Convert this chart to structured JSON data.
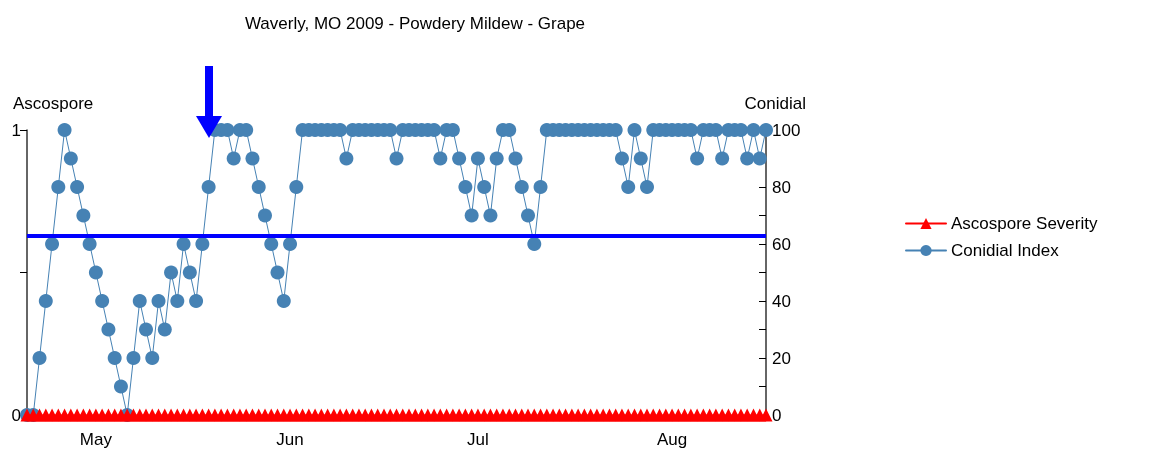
{
  "chart_data": {
    "type": "line",
    "title": "Waverly, MO 2009 - Powdery Mildew - Grape",
    "ylabel": "Ascospore",
    "y2label": "Conidial",
    "x": [
      "2009-04-20",
      "2009-04-21",
      "2009-04-22",
      "2009-04-23",
      "2009-04-24",
      "2009-04-25",
      "2009-04-26",
      "2009-04-27",
      "2009-04-28",
      "2009-04-29",
      "2009-04-30",
      "2009-05-01",
      "2009-05-02",
      "2009-05-03",
      "2009-05-04",
      "2009-05-05",
      "2009-05-06",
      "2009-05-07",
      "2009-05-08",
      "2009-05-09",
      "2009-05-10",
      "2009-05-11",
      "2009-05-12",
      "2009-05-13",
      "2009-05-14",
      "2009-05-15",
      "2009-05-16",
      "2009-05-17",
      "2009-05-18",
      "2009-05-19",
      "2009-05-20",
      "2009-05-21",
      "2009-05-22",
      "2009-05-23",
      "2009-05-24",
      "2009-05-25",
      "2009-05-26",
      "2009-05-27",
      "2009-05-28",
      "2009-05-29",
      "2009-05-30",
      "2009-05-31",
      "2009-06-01",
      "2009-06-02",
      "2009-06-03",
      "2009-06-04",
      "2009-06-05",
      "2009-06-06",
      "2009-06-07",
      "2009-06-08",
      "2009-06-09",
      "2009-06-10",
      "2009-06-11",
      "2009-06-12",
      "2009-06-13",
      "2009-06-14",
      "2009-06-15",
      "2009-06-16",
      "2009-06-17",
      "2009-06-18",
      "2009-06-19",
      "2009-06-20",
      "2009-06-21",
      "2009-06-22",
      "2009-06-23",
      "2009-06-24",
      "2009-06-25",
      "2009-06-26",
      "2009-06-27",
      "2009-06-28",
      "2009-06-29",
      "2009-06-30",
      "2009-07-01",
      "2009-07-02",
      "2009-07-03",
      "2009-07-04",
      "2009-07-05",
      "2009-07-06",
      "2009-07-07",
      "2009-07-08",
      "2009-07-09",
      "2009-07-10",
      "2009-07-11",
      "2009-07-12",
      "2009-07-13",
      "2009-07-14",
      "2009-07-15",
      "2009-07-16",
      "2009-07-17",
      "2009-07-18",
      "2009-07-19",
      "2009-07-20",
      "2009-07-21",
      "2009-07-22",
      "2009-07-23",
      "2009-07-24",
      "2009-07-25",
      "2009-07-26",
      "2009-07-27",
      "2009-07-28",
      "2009-07-29",
      "2009-07-30",
      "2009-07-31",
      "2009-08-01",
      "2009-08-02",
      "2009-08-03",
      "2009-08-04",
      "2009-08-05",
      "2009-08-06",
      "2009-08-07",
      "2009-08-08",
      "2009-08-09",
      "2009-08-10",
      "2009-08-11",
      "2009-08-12",
      "2009-08-13",
      "2009-08-14",
      "2009-08-15",
      "2009-08-16"
    ],
    "series": [
      {
        "name": "Ascospore Severity",
        "color": "#ff0000",
        "marker": "triangle",
        "values": [
          0,
          0,
          0,
          0,
          0,
          0,
          0,
          0,
          0,
          0,
          0,
          0,
          0,
          0,
          0,
          0,
          0,
          0,
          0,
          0,
          0,
          0,
          0,
          0,
          0,
          0,
          0,
          0,
          0,
          0,
          0,
          0,
          0,
          0,
          0,
          0,
          0,
          0,
          0,
          0,
          0,
          0,
          0,
          0,
          0,
          0,
          0,
          0,
          0,
          0,
          0,
          0,
          0,
          0,
          0,
          0,
          0,
          0,
          0,
          0,
          0,
          0,
          0,
          0,
          0,
          0,
          0,
          0,
          0,
          0,
          0,
          0,
          0,
          0,
          0,
          0,
          0,
          0,
          0,
          0,
          0,
          0,
          0,
          0,
          0,
          0,
          0,
          0,
          0,
          0,
          0,
          0,
          0,
          0,
          0,
          0,
          0,
          0,
          0,
          0,
          0,
          0,
          0,
          0,
          0,
          0,
          0,
          0,
          0,
          0,
          0,
          0,
          0,
          0,
          0,
          0,
          0,
          0,
          0
        ]
      },
      {
        "name": "Conidial Index",
        "color": "#4682b4",
        "marker": "circle",
        "axis": "y2",
        "values": [
          0,
          0,
          20,
          40,
          60,
          80,
          100,
          90,
          80,
          70,
          60,
          50,
          40,
          30,
          20,
          10,
          0,
          20,
          40,
          30,
          20,
          40,
          30,
          50,
          40,
          60,
          50,
          40,
          60,
          80,
          100,
          100,
          100,
          90,
          100,
          100,
          90,
          80,
          70,
          60,
          50,
          40,
          60,
          80,
          100,
          100,
          100,
          100,
          100,
          100,
          100,
          90,
          100,
          100,
          100,
          100,
          100,
          100,
          100,
          90,
          100,
          100,
          100,
          100,
          100,
          100,
          90,
          100,
          100,
          90,
          80,
          70,
          90,
          80,
          70,
          90,
          100,
          100,
          90,
          80,
          70,
          60,
          80,
          100,
          100,
          100,
          100,
          100,
          100,
          100,
          100,
          100,
          100,
          100,
          100,
          90,
          80,
          100,
          90,
          80,
          100,
          100,
          100,
          100,
          100,
          100,
          100,
          90,
          100,
          100,
          100,
          90,
          100,
          100,
          100,
          90,
          100,
          90,
          100
        ]
      }
    ],
    "xlim": [
      "2009-04-20",
      "2009-08-16"
    ],
    "xticks": [
      {
        "value": "2009-05-01",
        "label": "May"
      },
      {
        "value": "2009-06-01",
        "label": "Jun"
      },
      {
        "value": "2009-07-01",
        "label": "Jul"
      },
      {
        "value": "2009-08-01",
        "label": "Aug"
      }
    ],
    "ylim": [
      0,
      1
    ],
    "yticks": [
      0,
      {
        "value": 0.5,
        "label": null
      },
      1
    ],
    "y2lim": [
      0,
      100
    ],
    "y2ticks": [
      0,
      {
        "value": 10,
        "label": null
      },
      20,
      {
        "value": 30,
        "label": null
      },
      40,
      {
        "value": 50,
        "label": null
      },
      60,
      {
        "value": 70,
        "label": null
      },
      80,
      {
        "value": 90,
        "label": null
      },
      100
    ],
    "ref_lines": [
      {
        "axis": "y2",
        "value": 63,
        "color": "#0000ff"
      }
    ],
    "grid": false,
    "legend": "right",
    "line_style": "solid"
  }
}
